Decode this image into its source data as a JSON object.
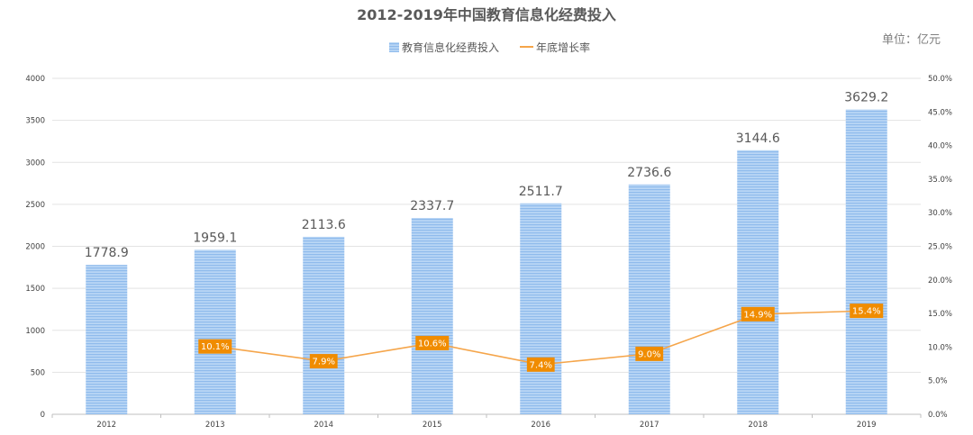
{
  "chart_data": {
    "type": "bar",
    "title": "2012-2019年中国教育信息化经费投入",
    "unit": "单位：亿元",
    "categories": [
      "2012",
      "2013",
      "2014",
      "2015",
      "2016",
      "2017",
      "2018",
      "2019"
    ],
    "series": [
      {
        "name": "教育信息化经费投入",
        "type": "bar",
        "axis": "left",
        "color": "#9dc3ef",
        "values": [
          1778.9,
          1959.1,
          2113.6,
          2337.7,
          2511.7,
          2736.6,
          3144.6,
          3629.2
        ],
        "labels": [
          "1778.9",
          "1959.1",
          "2113.6",
          "2337.7",
          "2511.7",
          "2736.6",
          "3144.6",
          "3629.2"
        ]
      },
      {
        "name": "年底增长率",
        "type": "line",
        "axis": "right",
        "color": "#f5a54a",
        "label_color": "#f08c00",
        "values": [
          null,
          10.1,
          7.9,
          10.6,
          7.4,
          9.0,
          14.9,
          15.4
        ],
        "labels": [
          "",
          "10.1%",
          "7.9%",
          "10.6%",
          "7.4%",
          "9.0%",
          "14.9%",
          "15.4%"
        ]
      }
    ],
    "y_left": {
      "min": 0,
      "max": 4000,
      "ticks": [
        "0",
        "500",
        "1000",
        "1500",
        "2000",
        "2500",
        "3000",
        "3500",
        "4000"
      ]
    },
    "y_right": {
      "min": 0,
      "max": 50,
      "ticks": [
        "0.0%",
        "5.0%",
        "10.0%",
        "15.0%",
        "20.0%",
        "25.0%",
        "30.0%",
        "35.0%",
        "40.0%",
        "45.0%",
        "50.0%"
      ]
    },
    "grid": true,
    "legend": "top-center",
    "colors": {
      "grid": "#e3e3e3",
      "axis": "#bfbfbf"
    }
  }
}
